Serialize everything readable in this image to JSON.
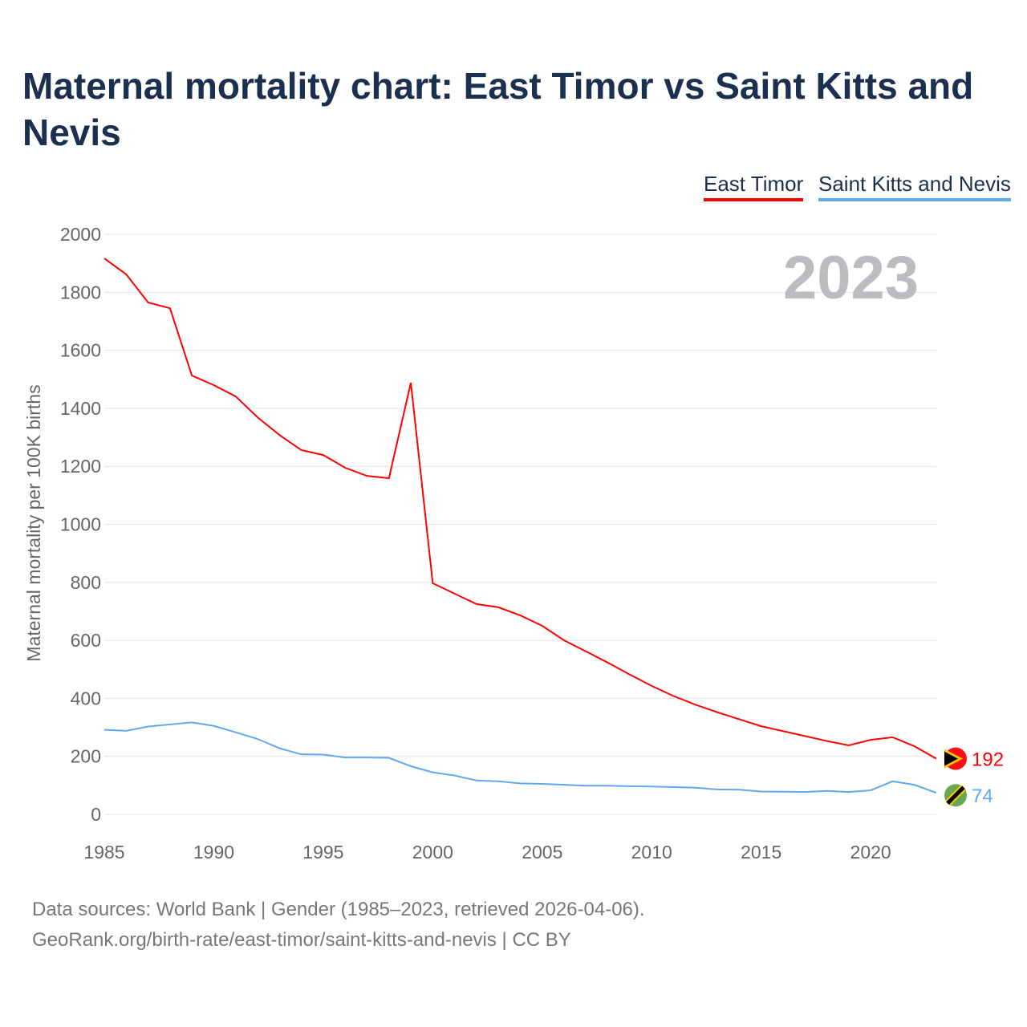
{
  "title": "Maternal mortality chart: East Timor vs Saint Kitts and Nevis",
  "footer": {
    "line1": "Data sources: World Bank | Gender (1985–2023, retrieved 2026-04-06).",
    "line2": "GeoRank.org/birth-rate/east-timor/saint-kitts-and-nevis | CC BY"
  },
  "chart_data": {
    "type": "line",
    "title": "Maternal mortality chart: East Timor vs Saint Kitts and Nevis",
    "ylabel": "Maternal mortality per 100K births",
    "xlabel": "",
    "ylim": [
      0,
      2000
    ],
    "xlim": [
      1985,
      2023
    ],
    "yticks": [
      0,
      200,
      400,
      600,
      800,
      1000,
      1200,
      1400,
      1600,
      1800,
      2000
    ],
    "xticks": [
      1985,
      1990,
      1995,
      2000,
      2005,
      2010,
      2015,
      2020
    ],
    "year_label": "2023",
    "legend_position": "top-right",
    "grid": true,
    "x": [
      1985,
      1986,
      1987,
      1988,
      1989,
      1990,
      1991,
      1992,
      1993,
      1994,
      1995,
      1996,
      1997,
      1998,
      1999,
      2000,
      2001,
      2002,
      2003,
      2004,
      2005,
      2006,
      2007,
      2008,
      2009,
      2010,
      2011,
      2012,
      2013,
      2014,
      2015,
      2016,
      2017,
      2018,
      2019,
      2020,
      2021,
      2022,
      2023
    ],
    "series": [
      {
        "name": "East Timor",
        "color": "#ff0000",
        "end_label": "192",
        "values": [
          1917,
          1862,
          1765,
          1745,
          1513,
          1480,
          1441,
          1369,
          1308,
          1256,
          1239,
          1195,
          1167,
          1159,
          1488,
          797,
          761,
          725,
          714,
          686,
          650,
          600,
          562,
          523,
          482,
          443,
          408,
          378,
          352,
          328,
          304,
          287,
          270,
          253,
          238,
          257,
          266,
          235,
          192
        ]
      },
      {
        "name": "Saint Kitts and Nevis",
        "color": "#5ea8f0",
        "end_label": "74",
        "values": [
          292,
          288,
          303,
          310,
          317,
          305,
          283,
          260,
          228,
          207,
          206,
          196,
          196,
          195,
          166,
          145,
          134,
          117,
          114,
          107,
          105,
          102,
          99,
          99,
          97,
          96,
          94,
          92,
          86,
          85,
          79,
          78,
          77,
          81,
          77,
          83,
          114,
          102,
          74
        ]
      }
    ]
  }
}
